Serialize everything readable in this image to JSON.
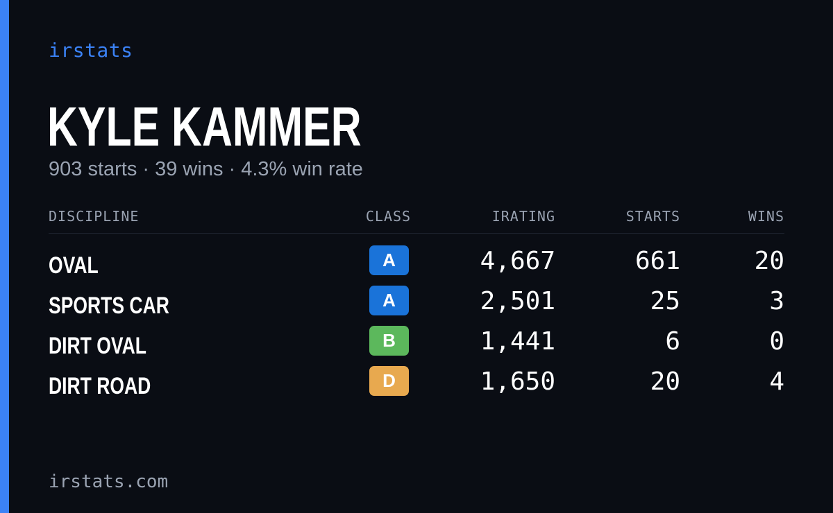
{
  "brand": "irstats",
  "driver": {
    "name": "KYLE KAMMER",
    "summary": "903 starts · 39 wins · 4.3% win rate"
  },
  "table": {
    "headers": {
      "discipline": "DISCIPLINE",
      "class": "CLASS",
      "irating": "IRATING",
      "starts": "STARTS",
      "wins": "WINS"
    },
    "rows": [
      {
        "discipline": "OVAL",
        "class": "A",
        "class_color": "#1a73d9",
        "irating": "4,667",
        "starts": "661",
        "wins": "20"
      },
      {
        "discipline": "SPORTS CAR",
        "class": "A",
        "class_color": "#1a73d9",
        "irating": "2,501",
        "starts": "25",
        "wins": "3"
      },
      {
        "discipline": "DIRT OVAL",
        "class": "B",
        "class_color": "#5cb85c",
        "irating": "1,441",
        "starts": "6",
        "wins": "0"
      },
      {
        "discipline": "DIRT ROAD",
        "class": "D",
        "class_color": "#e8a94f",
        "irating": "1,650",
        "starts": "20",
        "wins": "4"
      }
    ]
  },
  "footer": "irstats.com",
  "colors": {
    "background": "#0a0d14",
    "accent": "#3b82f6",
    "muted_text": "#9aa3b2"
  }
}
